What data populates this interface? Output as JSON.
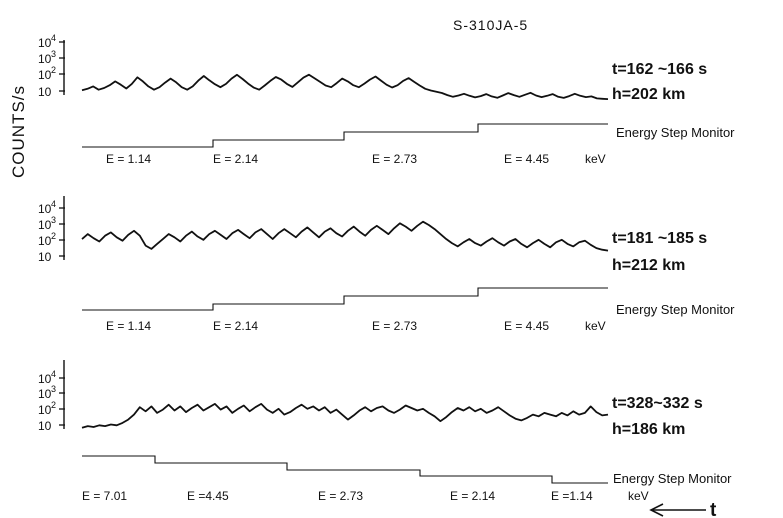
{
  "figure_id": "S-310JA-5",
  "ylabel": "COUNTS/s",
  "energy_unit": "keV",
  "time_arrow_label": "t",
  "chart_data": [
    {
      "type": "line",
      "time_label": "t=162 ~166 s",
      "altitude_label": "h=202  km",
      "monitor_label": "Energy Step Monitor",
      "yticks": [
        "10",
        "10",
        "10",
        "10"
      ],
      "yexp": [
        "",
        "2",
        "3",
        "4"
      ],
      "energy_labels": [
        "E = 1.14",
        "E = 2.14",
        "E = 2.73",
        "E = 4.45"
      ],
      "show_unit": true,
      "y_log": [
        1.02,
        1.1,
        1.25,
        1.05,
        1.15,
        1.32,
        1.55,
        1.35,
        1.12,
        1.4,
        1.8,
        1.55,
        1.25,
        1.05,
        1.2,
        1.48,
        1.72,
        1.5,
        1.2,
        1.05,
        1.25,
        1.6,
        1.88,
        1.62,
        1.38,
        1.2,
        1.4,
        1.72,
        1.95,
        1.7,
        1.42,
        1.18,
        1.05,
        1.3,
        1.58,
        1.82,
        1.66,
        1.4,
        1.22,
        1.5,
        1.78,
        1.96,
        1.74,
        1.52,
        1.3,
        1.2,
        1.45,
        1.72,
        1.55,
        1.32,
        1.2,
        1.42,
        1.66,
        1.85,
        1.6,
        1.35,
        1.18,
        1.32,
        1.58,
        1.75,
        1.52,
        1.3,
        1.1,
        1.0,
        0.92,
        0.85,
        0.72,
        0.62,
        0.7,
        0.8,
        0.68,
        0.58,
        0.66,
        0.78,
        0.64,
        0.56,
        0.7,
        0.84,
        0.72,
        0.62,
        0.74,
        0.86,
        0.7,
        0.6,
        0.68,
        0.78,
        0.62,
        0.55,
        0.66,
        0.8,
        0.68,
        0.6,
        0.64,
        0.52,
        0.5,
        0.48
      ]
    },
    {
      "type": "line",
      "time_label": "t=181 ~185 s",
      "altitude_label": "h=212  km",
      "monitor_label": "Energy Step Monitor",
      "yticks": [
        "10",
        "10",
        "10",
        "10"
      ],
      "yexp": [
        "",
        "2",
        "3",
        "4"
      ],
      "energy_labels": [
        "E = 1.14",
        "E = 2.14",
        "E = 2.73",
        "E = 4.45"
      ],
      "show_unit": true,
      "y_log": [
        2.0,
        2.3,
        2.05,
        1.85,
        2.2,
        2.4,
        2.1,
        1.9,
        2.25,
        2.5,
        2.2,
        1.6,
        1.4,
        1.7,
        2.0,
        2.3,
        2.1,
        1.85,
        2.2,
        2.45,
        2.15,
        1.95,
        2.3,
        2.5,
        2.25,
        2.0,
        2.35,
        2.55,
        2.3,
        2.05,
        2.4,
        2.6,
        2.3,
        2.0,
        2.35,
        2.6,
        2.35,
        2.1,
        2.45,
        2.7,
        2.4,
        2.1,
        2.45,
        2.65,
        2.35,
        2.15,
        2.5,
        2.75,
        2.45,
        2.2,
        2.55,
        2.8,
        2.55,
        2.3,
        2.65,
        2.95,
        2.75,
        2.5,
        2.8,
        3.05,
        2.85,
        2.6,
        2.3,
        2.0,
        1.75,
        1.55,
        1.8,
        2.0,
        1.75,
        1.6,
        1.85,
        2.05,
        1.8,
        1.6,
        1.85,
        2.0,
        1.7,
        1.5,
        1.75,
        1.95,
        1.7,
        1.5,
        1.8,
        1.95,
        1.7,
        1.55,
        1.8,
        1.9,
        1.65,
        1.45,
        1.35,
        1.3
      ]
    },
    {
      "type": "line",
      "time_label": "t=328~332 s",
      "altitude_label": "h=186  km",
      "monitor_label": "Energy  Step Monitor",
      "yticks": [
        "10",
        "10",
        "10",
        "10"
      ],
      "yexp": [
        "",
        "2",
        "3",
        "4"
      ],
      "energy_labels": [
        "E = 7.01",
        "E =4.45",
        "E = 2.73",
        "E = 2.14",
        "E =1.14"
      ],
      "show_unit": true,
      "y_log": [
        0.8,
        0.9,
        0.85,
        0.95,
        0.9,
        1.0,
        0.95,
        1.1,
        1.3,
        1.6,
        2.05,
        1.8,
        2.1,
        1.7,
        1.9,
        2.2,
        1.85,
        2.1,
        1.75,
        2.0,
        2.2,
        1.85,
        2.05,
        2.25,
        1.9,
        2.1,
        1.7,
        1.95,
        2.15,
        1.8,
        2.05,
        2.25,
        1.9,
        1.7,
        1.95,
        1.6,
        1.75,
        2.0,
        2.2,
        1.95,
        2.1,
        1.85,
        2.05,
        1.7,
        1.9,
        1.6,
        1.3,
        1.55,
        1.85,
        2.05,
        1.8,
        2.0,
        2.1,
        1.85,
        1.7,
        1.9,
        2.15,
        2.0,
        1.85,
        1.95,
        1.7,
        1.5,
        1.2,
        1.45,
        1.75,
        2.0,
        1.85,
        2.05,
        1.8,
        1.95,
        1.7,
        1.85,
        2.05,
        1.8,
        1.55,
        1.35,
        1.25,
        1.4,
        1.6,
        1.5,
        1.7,
        1.6,
        1.5,
        1.7,
        1.55,
        1.8,
        1.6,
        1.7,
        2.1,
        1.75,
        1.55,
        1.6
      ]
    }
  ]
}
